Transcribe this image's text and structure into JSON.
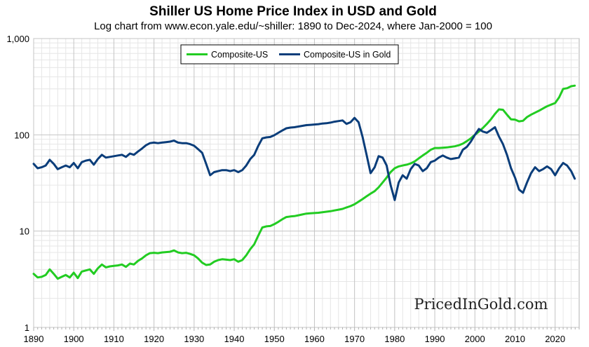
{
  "chart_data": {
    "type": "line",
    "title": "Shiller US Home Price Index in USD and Gold",
    "subtitle": "Log chart from www.econ.yale.edu/~shiller: 1890 to Dec-2024, where Jan-2000 = 100",
    "y_scale": "log",
    "ylim": [
      1,
      1000
    ],
    "xlim": [
      1890,
      2026
    ],
    "y_ticks": [
      {
        "value": 1,
        "label": "1"
      },
      {
        "value": 10,
        "label": "10"
      },
      {
        "value": 100,
        "label": "100"
      },
      {
        "value": 1000,
        "label": "1,000"
      }
    ],
    "x_ticks": [
      {
        "value": 1890,
        "label": "1890"
      },
      {
        "value": 1900,
        "label": "1900"
      },
      {
        "value": 1910,
        "label": "1910"
      },
      {
        "value": 1920,
        "label": "1920"
      },
      {
        "value": 1930,
        "label": "1930"
      },
      {
        "value": 1940,
        "label": "1940"
      },
      {
        "value": 1950,
        "label": "1950"
      },
      {
        "value": 1960,
        "label": "1960"
      },
      {
        "value": 1970,
        "label": "1970"
      },
      {
        "value": 1980,
        "label": "1980"
      },
      {
        "value": 1990,
        "label": "1990"
      },
      {
        "value": 2000,
        "label": "2000"
      },
      {
        "value": 2010,
        "label": "2010"
      },
      {
        "value": 2020,
        "label": "2020"
      }
    ],
    "grid": true,
    "legend_position": "top-center",
    "watermark": "PricedInGold.com",
    "series": [
      {
        "name": "Composite-US",
        "color": "#22cc22",
        "points": [
          [
            1890,
            3.6
          ],
          [
            1891,
            3.3
          ],
          [
            1892,
            3.35
          ],
          [
            1893,
            3.5
          ],
          [
            1894,
            4.0
          ],
          [
            1895,
            3.6
          ],
          [
            1896,
            3.2
          ],
          [
            1897,
            3.35
          ],
          [
            1898,
            3.5
          ],
          [
            1899,
            3.3
          ],
          [
            1900,
            3.7
          ],
          [
            1901,
            3.25
          ],
          [
            1902,
            3.8
          ],
          [
            1903,
            3.9
          ],
          [
            1904,
            4.0
          ],
          [
            1905,
            3.6
          ],
          [
            1906,
            4.1
          ],
          [
            1907,
            4.5
          ],
          [
            1908,
            4.2
          ],
          [
            1909,
            4.3
          ],
          [
            1910,
            4.35
          ],
          [
            1911,
            4.4
          ],
          [
            1912,
            4.5
          ],
          [
            1913,
            4.25
          ],
          [
            1914,
            4.6
          ],
          [
            1915,
            4.5
          ],
          [
            1916,
            4.9
          ],
          [
            1917,
            5.2
          ],
          [
            1918,
            5.6
          ],
          [
            1919,
            5.9
          ],
          [
            1920,
            5.95
          ],
          [
            1921,
            5.9
          ],
          [
            1922,
            6.0
          ],
          [
            1923,
            6.05
          ],
          [
            1924,
            6.1
          ],
          [
            1925,
            6.3
          ],
          [
            1926,
            6.0
          ],
          [
            1927,
            5.9
          ],
          [
            1928,
            5.95
          ],
          [
            1929,
            5.8
          ],
          [
            1930,
            5.6
          ],
          [
            1931,
            5.2
          ],
          [
            1932,
            4.7
          ],
          [
            1933,
            4.45
          ],
          [
            1934,
            4.5
          ],
          [
            1935,
            4.8
          ],
          [
            1936,
            5.0
          ],
          [
            1937,
            5.1
          ],
          [
            1938,
            5.05
          ],
          [
            1939,
            5.0
          ],
          [
            1940,
            5.1
          ],
          [
            1941,
            4.8
          ],
          [
            1942,
            5.0
          ],
          [
            1943,
            5.6
          ],
          [
            1944,
            6.5
          ],
          [
            1945,
            7.3
          ],
          [
            1946,
            9.0
          ],
          [
            1947,
            10.9
          ],
          [
            1948,
            11.2
          ],
          [
            1949,
            11.3
          ],
          [
            1950,
            11.8
          ],
          [
            1951,
            12.5
          ],
          [
            1952,
            13.3
          ],
          [
            1953,
            14.0
          ],
          [
            1954,
            14.2
          ],
          [
            1955,
            14.3
          ],
          [
            1956,
            14.6
          ],
          [
            1957,
            14.9
          ],
          [
            1958,
            15.2
          ],
          [
            1959,
            15.3
          ],
          [
            1960,
            15.4
          ],
          [
            1961,
            15.5
          ],
          [
            1962,
            15.7
          ],
          [
            1963,
            15.9
          ],
          [
            1964,
            16.1
          ],
          [
            1965,
            16.4
          ],
          [
            1966,
            16.7
          ],
          [
            1967,
            17.0
          ],
          [
            1968,
            17.6
          ],
          [
            1969,
            18.2
          ],
          [
            1970,
            19.0
          ],
          [
            1971,
            20.2
          ],
          [
            1972,
            21.5
          ],
          [
            1973,
            23.0
          ],
          [
            1974,
            24.5
          ],
          [
            1975,
            26.0
          ],
          [
            1976,
            28.5
          ],
          [
            1977,
            32.0
          ],
          [
            1978,
            36.0
          ],
          [
            1979,
            41.0
          ],
          [
            1980,
            45.0
          ],
          [
            1981,
            47.0
          ],
          [
            1982,
            48.0
          ],
          [
            1983,
            49.0
          ],
          [
            1984,
            50.5
          ],
          [
            1985,
            53.0
          ],
          [
            1986,
            57.0
          ],
          [
            1987,
            61.0
          ],
          [
            1988,
            65.0
          ],
          [
            1989,
            70.0
          ],
          [
            1990,
            73.0
          ],
          [
            1991,
            73.0
          ],
          [
            1992,
            73.5
          ],
          [
            1993,
            74.0
          ],
          [
            1994,
            75.0
          ],
          [
            1995,
            76.0
          ],
          [
            1996,
            78.0
          ],
          [
            1997,
            81.0
          ],
          [
            1998,
            86.0
          ],
          [
            1999,
            92.0
          ],
          [
            2000,
            100.0
          ],
          [
            2001,
            108.0
          ],
          [
            2002,
            118.0
          ],
          [
            2003,
            130.0
          ],
          [
            2004,
            145.0
          ],
          [
            2005,
            165.0
          ],
          [
            2006,
            184.0
          ],
          [
            2007,
            182.0
          ],
          [
            2008,
            162.0
          ],
          [
            2009,
            145.0
          ],
          [
            2010,
            144.0
          ],
          [
            2011,
            138.0
          ],
          [
            2012,
            140.0
          ],
          [
            2013,
            153.0
          ],
          [
            2014,
            162.0
          ],
          [
            2015,
            170.0
          ],
          [
            2016,
            178.0
          ],
          [
            2017,
            188.0
          ],
          [
            2018,
            198.0
          ],
          [
            2019,
            206.0
          ],
          [
            2020,
            214.0
          ],
          [
            2021,
            245.0
          ],
          [
            2022,
            300.0
          ],
          [
            2023,
            305.0
          ],
          [
            2024,
            320.0
          ],
          [
            2024.9,
            324.0
          ]
        ]
      },
      {
        "name": "Composite-US in Gold",
        "color": "#0a3d7a",
        "points": [
          [
            1890,
            50
          ],
          [
            1891,
            45
          ],
          [
            1892,
            46
          ],
          [
            1893,
            48
          ],
          [
            1894,
            55
          ],
          [
            1895,
            50
          ],
          [
            1896,
            44
          ],
          [
            1897,
            46
          ],
          [
            1898,
            48
          ],
          [
            1899,
            46
          ],
          [
            1900,
            51
          ],
          [
            1901,
            45
          ],
          [
            1902,
            52
          ],
          [
            1903,
            54
          ],
          [
            1904,
            55
          ],
          [
            1905,
            49
          ],
          [
            1906,
            56
          ],
          [
            1907,
            62
          ],
          [
            1908,
            58
          ],
          [
            1909,
            59
          ],
          [
            1910,
            60
          ],
          [
            1911,
            61
          ],
          [
            1912,
            62
          ],
          [
            1913,
            59
          ],
          [
            1914,
            64
          ],
          [
            1915,
            62
          ],
          [
            1916,
            67
          ],
          [
            1917,
            72
          ],
          [
            1918,
            78
          ],
          [
            1919,
            82
          ],
          [
            1920,
            83
          ],
          [
            1921,
            82
          ],
          [
            1922,
            83
          ],
          [
            1923,
            84
          ],
          [
            1924,
            85
          ],
          [
            1925,
            87
          ],
          [
            1926,
            83
          ],
          [
            1927,
            82
          ],
          [
            1928,
            82
          ],
          [
            1929,
            80
          ],
          [
            1930,
            77
          ],
          [
            1931,
            71
          ],
          [
            1932,
            65
          ],
          [
            1933,
            50
          ],
          [
            1934,
            38
          ],
          [
            1935,
            41
          ],
          [
            1936,
            42
          ],
          [
            1937,
            43
          ],
          [
            1938,
            43
          ],
          [
            1939,
            42
          ],
          [
            1940,
            43
          ],
          [
            1941,
            41
          ],
          [
            1942,
            43
          ],
          [
            1943,
            48
          ],
          [
            1944,
            56
          ],
          [
            1945,
            62
          ],
          [
            1946,
            77
          ],
          [
            1947,
            92
          ],
          [
            1948,
            94
          ],
          [
            1949,
            95
          ],
          [
            1950,
            99
          ],
          [
            1951,
            105
          ],
          [
            1952,
            111
          ],
          [
            1953,
            117
          ],
          [
            1954,
            119
          ],
          [
            1955,
            120
          ],
          [
            1956,
            122
          ],
          [
            1957,
            124
          ],
          [
            1958,
            126
          ],
          [
            1959,
            127
          ],
          [
            1960,
            128
          ],
          [
            1961,
            129
          ],
          [
            1962,
            131
          ],
          [
            1963,
            132
          ],
          [
            1964,
            134
          ],
          [
            1965,
            137
          ],
          [
            1966,
            139
          ],
          [
            1967,
            141
          ],
          [
            1968,
            130
          ],
          [
            1969,
            135
          ],
          [
            1970,
            150
          ],
          [
            1971,
            135
          ],
          [
            1972,
            95
          ],
          [
            1973,
            62
          ],
          [
            1974,
            40
          ],
          [
            1975,
            46
          ],
          [
            1976,
            60
          ],
          [
            1977,
            58
          ],
          [
            1978,
            48
          ],
          [
            1979,
            30
          ],
          [
            1980,
            21
          ],
          [
            1981,
            32
          ],
          [
            1982,
            38
          ],
          [
            1983,
            35
          ],
          [
            1984,
            44
          ],
          [
            1985,
            50
          ],
          [
            1986,
            48
          ],
          [
            1987,
            42
          ],
          [
            1988,
            45
          ],
          [
            1989,
            52
          ],
          [
            1990,
            54
          ],
          [
            1991,
            58
          ],
          [
            1992,
            61
          ],
          [
            1993,
            58
          ],
          [
            1994,
            56
          ],
          [
            1995,
            57
          ],
          [
            1996,
            58
          ],
          [
            1997,
            70
          ],
          [
            1998,
            75
          ],
          [
            1999,
            85
          ],
          [
            2000,
            100
          ],
          [
            2001,
            115
          ],
          [
            2002,
            108
          ],
          [
            2003,
            105
          ],
          [
            2004,
            112
          ],
          [
            2005,
            120
          ],
          [
            2006,
            96
          ],
          [
            2007,
            80
          ],
          [
            2008,
            62
          ],
          [
            2009,
            45
          ],
          [
            2010,
            36
          ],
          [
            2011,
            27
          ],
          [
            2012,
            25
          ],
          [
            2013,
            32
          ],
          [
            2014,
            40
          ],
          [
            2015,
            46
          ],
          [
            2016,
            42
          ],
          [
            2017,
            44
          ],
          [
            2018,
            47
          ],
          [
            2019,
            44
          ],
          [
            2020,
            38
          ],
          [
            2021,
            45
          ],
          [
            2022,
            51
          ],
          [
            2023,
            48
          ],
          [
            2024,
            42
          ],
          [
            2024.9,
            35
          ]
        ]
      }
    ]
  }
}
